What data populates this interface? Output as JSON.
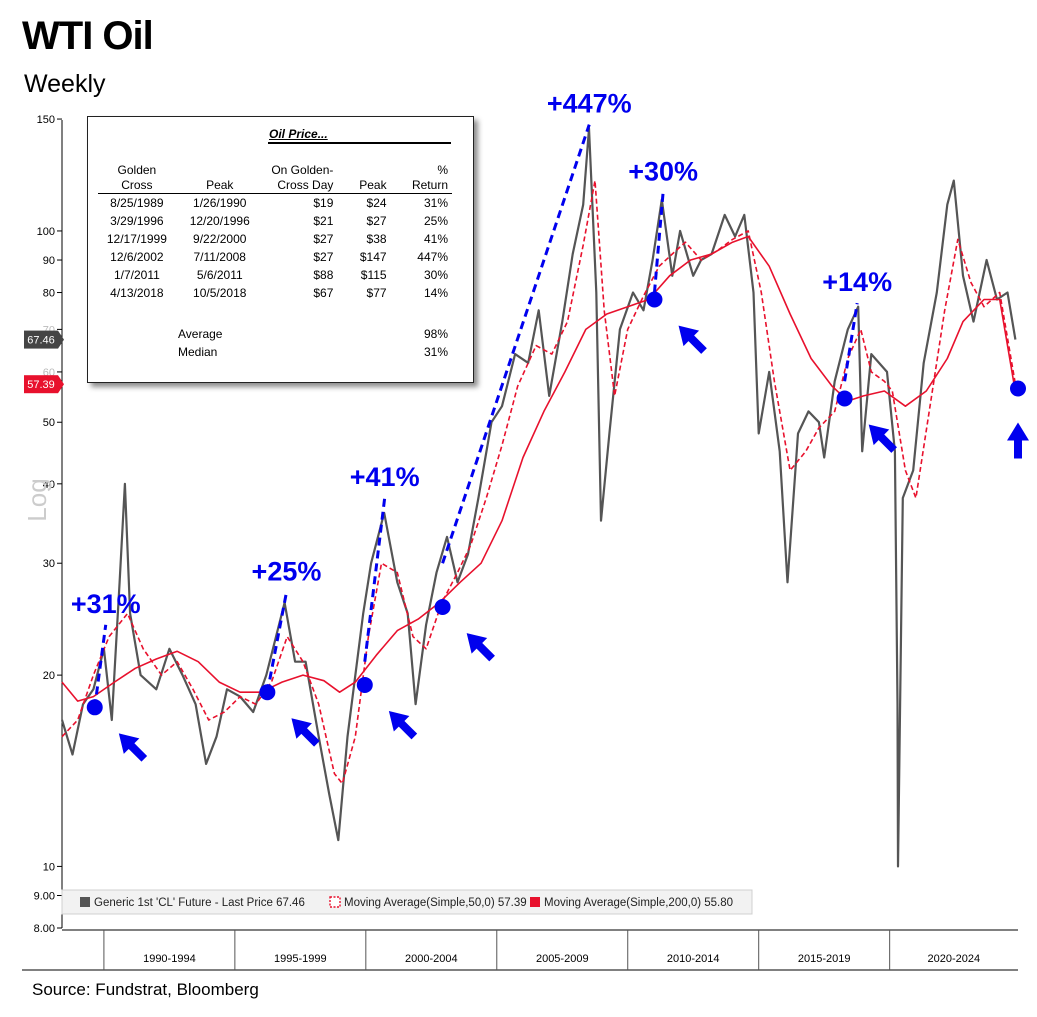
{
  "header": {
    "title": "WTI Oil",
    "subtitle": "Weekly"
  },
  "source": "Source: Fundstrat, Bloomberg",
  "table": {
    "title": "Oil Price...",
    "headers": {
      "golden_cross": [
        "Golden",
        "Cross"
      ],
      "peak": [
        "",
        "Peak"
      ],
      "on_golden": [
        "On Golden-",
        "Cross Day"
      ],
      "peak_price": [
        "",
        "Peak"
      ],
      "return": [
        "%",
        "Return"
      ]
    },
    "rows": [
      [
        "8/25/1989",
        "1/26/1990",
        "$19",
        "$24",
        "31%"
      ],
      [
        "3/29/1996",
        "12/20/1996",
        "$21",
        "$27",
        "25%"
      ],
      [
        "12/17/1999",
        "9/22/2000",
        "$27",
        "$38",
        "41%"
      ],
      [
        "12/6/2002",
        "7/11/2008",
        "$27",
        "$147",
        "447%"
      ],
      [
        "1/7/2011",
        "5/6/2011",
        "$88",
        "$115",
        "30%"
      ],
      [
        "4/13/2018",
        "10/5/2018",
        "$67",
        "$77",
        "14%"
      ]
    ],
    "average_label": "Average",
    "average_value": "98%",
    "median_label": "Median",
    "median_value": "31%"
  },
  "chart_data": {
    "type": "line",
    "scale": "log",
    "ylabel": "Log",
    "ylim": [
      8,
      155
    ],
    "y_ticks": [
      8,
      9,
      10,
      20,
      30,
      40,
      50,
      60,
      70,
      80,
      90,
      100,
      150
    ],
    "y_tick_labels": [
      "8.00",
      "9.00",
      "10",
      "20",
      "30",
      "40",
      "50",
      "60",
      "70",
      "80",
      "90",
      "100",
      "150"
    ],
    "x_period_labels": [
      "1990-1994",
      "1995-1999",
      "2000-2004",
      "2005-2009",
      "2010-2014",
      "2015-2019",
      "2020-2024"
    ],
    "x_range": [
      1988.4,
      2024.9
    ],
    "current_price": {
      "value": 67.46,
      "label": "67.46",
      "color": "#444444"
    },
    "current_ma50": {
      "value": 57.39,
      "label": "57.39",
      "color": "#e8112d"
    },
    "series": [
      {
        "name": "Generic 1st 'CL' Future - Last Price 67.46",
        "color": "#555555",
        "points": [
          [
            1988.4,
            17
          ],
          [
            1988.8,
            15
          ],
          [
            1989.2,
            18
          ],
          [
            1989.6,
            19
          ],
          [
            1990.0,
            22
          ],
          [
            1990.3,
            17
          ],
          [
            1990.6,
            28
          ],
          [
            1990.8,
            40
          ],
          [
            1991.0,
            25
          ],
          [
            1991.4,
            20
          ],
          [
            1992.0,
            19
          ],
          [
            1992.5,
            22
          ],
          [
            1993.0,
            20
          ],
          [
            1993.5,
            18
          ],
          [
            1993.9,
            14.5
          ],
          [
            1994.3,
            16
          ],
          [
            1994.7,
            19
          ],
          [
            1995.2,
            18.5
          ],
          [
            1995.7,
            17.5
          ],
          [
            1996.2,
            20
          ],
          [
            1996.9,
            26
          ],
          [
            1997.3,
            21
          ],
          [
            1997.7,
            21
          ],
          [
            1998.2,
            16
          ],
          [
            1998.6,
            13
          ],
          [
            1998.95,
            11
          ],
          [
            1999.3,
            16
          ],
          [
            1999.9,
            25
          ],
          [
            2000.2,
            30
          ],
          [
            2000.7,
            36
          ],
          [
            2001.2,
            28
          ],
          [
            2001.6,
            25
          ],
          [
            2001.9,
            18
          ],
          [
            2002.3,
            24
          ],
          [
            2002.7,
            29
          ],
          [
            2003.1,
            33
          ],
          [
            2003.5,
            28
          ],
          [
            2003.9,
            31
          ],
          [
            2004.3,
            38
          ],
          [
            2004.8,
            50
          ],
          [
            2005.2,
            53
          ],
          [
            2005.7,
            64
          ],
          [
            2006.2,
            62
          ],
          [
            2006.6,
            75
          ],
          [
            2007.0,
            55
          ],
          [
            2007.5,
            72
          ],
          [
            2007.9,
            92
          ],
          [
            2008.3,
            110
          ],
          [
            2008.52,
            145
          ],
          [
            2008.8,
            80
          ],
          [
            2008.98,
            35
          ],
          [
            2009.3,
            48
          ],
          [
            2009.7,
            70
          ],
          [
            2010.2,
            80
          ],
          [
            2010.6,
            75
          ],
          [
            2010.95,
            90
          ],
          [
            2011.3,
            112
          ],
          [
            2011.7,
            85
          ],
          [
            2012.0,
            100
          ],
          [
            2012.5,
            85
          ],
          [
            2012.8,
            90
          ],
          [
            2013.2,
            92
          ],
          [
            2013.7,
            106
          ],
          [
            2014.1,
            98
          ],
          [
            2014.45,
            106
          ],
          [
            2014.8,
            80
          ],
          [
            2015.0,
            48
          ],
          [
            2015.4,
            60
          ],
          [
            2015.8,
            45
          ],
          [
            2016.1,
            28
          ],
          [
            2016.5,
            48
          ],
          [
            2016.9,
            52
          ],
          [
            2017.3,
            50
          ],
          [
            2017.5,
            44
          ],
          [
            2017.9,
            58
          ],
          [
            2018.4,
            70
          ],
          [
            2018.8,
            76
          ],
          [
            2018.95,
            45
          ],
          [
            2019.3,
            64
          ],
          [
            2019.9,
            60
          ],
          [
            2020.2,
            45
          ],
          [
            2020.3,
            18
          ],
          [
            2020.32,
            10
          ],
          [
            2020.5,
            38
          ],
          [
            2020.9,
            42
          ],
          [
            2021.3,
            62
          ],
          [
            2021.8,
            80
          ],
          [
            2022.2,
            110
          ],
          [
            2022.45,
            120
          ],
          [
            2022.8,
            85
          ],
          [
            2023.2,
            72
          ],
          [
            2023.7,
            90
          ],
          [
            2024.1,
            78
          ],
          [
            2024.5,
            80
          ],
          [
            2024.8,
            67.46
          ]
        ]
      },
      {
        "name": "Moving Average(Simple,50,0) 57.39",
        "color": "#e8112d",
        "dashed": true,
        "points": [
          [
            1988.4,
            16
          ],
          [
            1989.0,
            17
          ],
          [
            1989.6,
            20
          ],
          [
            1990.2,
            23
          ],
          [
            1990.9,
            25
          ],
          [
            1991.5,
            22
          ],
          [
            1992.2,
            20
          ],
          [
            1992.8,
            21
          ],
          [
            1993.4,
            19
          ],
          [
            1994.0,
            17
          ],
          [
            1994.6,
            17.5
          ],
          [
            1995.2,
            18.5
          ],
          [
            1995.8,
            18
          ],
          [
            1996.4,
            19.5
          ],
          [
            1997.0,
            23
          ],
          [
            1997.6,
            21
          ],
          [
            1998.2,
            18
          ],
          [
            1998.8,
            14
          ],
          [
            1999.1,
            13.5
          ],
          [
            1999.6,
            16
          ],
          [
            2000.1,
            23
          ],
          [
            2000.6,
            30
          ],
          [
            2001.2,
            29
          ],
          [
            2001.8,
            23
          ],
          [
            2002.3,
            22
          ],
          [
            2002.9,
            26
          ],
          [
            2003.5,
            29
          ],
          [
            2004.0,
            32
          ],
          [
            2004.6,
            38
          ],
          [
            2005.2,
            46
          ],
          [
            2005.8,
            57
          ],
          [
            2006.5,
            66
          ],
          [
            2007.1,
            64
          ],
          [
            2007.7,
            72
          ],
          [
            2008.3,
            95
          ],
          [
            2008.75,
            120
          ],
          [
            2009.1,
            75
          ],
          [
            2009.5,
            55
          ],
          [
            2010.0,
            70
          ],
          [
            2010.6,
            79
          ],
          [
            2011.2,
            88
          ],
          [
            2011.7,
            92
          ],
          [
            2012.2,
            96
          ],
          [
            2012.8,
            90
          ],
          [
            2013.4,
            93
          ],
          [
            2014.0,
            97
          ],
          [
            2014.6,
            100
          ],
          [
            2015.1,
            80
          ],
          [
            2015.6,
            58
          ],
          [
            2016.2,
            42
          ],
          [
            2016.8,
            45
          ],
          [
            2017.3,
            49
          ],
          [
            2017.9,
            52
          ],
          [
            2018.4,
            63
          ],
          [
            2018.9,
            70
          ],
          [
            2019.3,
            60
          ],
          [
            2019.8,
            58
          ],
          [
            2020.1,
            56
          ],
          [
            2020.6,
            42
          ],
          [
            2021.0,
            38
          ],
          [
            2021.6,
            55
          ],
          [
            2022.1,
            75
          ],
          [
            2022.6,
            97
          ],
          [
            2023.1,
            83
          ],
          [
            2023.6,
            76
          ],
          [
            2024.2,
            80
          ],
          [
            2024.8,
            57.39
          ]
        ]
      },
      {
        "name": "Moving Average(Simple,200,0) 55.80",
        "color": "#e8112d",
        "dashed": false,
        "points": [
          [
            1988.4,
            19.5
          ],
          [
            1989.0,
            18.2
          ],
          [
            1989.6,
            18.5
          ],
          [
            1990.4,
            19.5
          ],
          [
            1991.2,
            20.5
          ],
          [
            1992.0,
            21.2
          ],
          [
            1992.8,
            21.8
          ],
          [
            1993.6,
            21
          ],
          [
            1994.4,
            19.5
          ],
          [
            1995.2,
            18.8
          ],
          [
            1996.0,
            18.8
          ],
          [
            1996.8,
            19.5
          ],
          [
            1997.6,
            20
          ],
          [
            1998.4,
            19.6
          ],
          [
            1999.0,
            18.8
          ],
          [
            1999.6,
            19.5
          ],
          [
            2000.4,
            21.5
          ],
          [
            2001.2,
            23.5
          ],
          [
            2002.0,
            24.5
          ],
          [
            2002.8,
            26
          ],
          [
            2003.6,
            28
          ],
          [
            2004.4,
            30
          ],
          [
            2005.2,
            35
          ],
          [
            2006.0,
            44
          ],
          [
            2006.8,
            52
          ],
          [
            2007.6,
            60
          ],
          [
            2008.4,
            70
          ],
          [
            2009.2,
            74
          ],
          [
            2010.0,
            76
          ],
          [
            2010.8,
            78
          ],
          [
            2011.6,
            85
          ],
          [
            2012.4,
            90
          ],
          [
            2013.2,
            92
          ],
          [
            2014.0,
            96
          ],
          [
            2014.6,
            98
          ],
          [
            2015.4,
            88
          ],
          [
            2016.2,
            74
          ],
          [
            2017.0,
            63
          ],
          [
            2017.8,
            57
          ],
          [
            2018.4,
            54
          ],
          [
            2019.0,
            55
          ],
          [
            2019.8,
            56
          ],
          [
            2020.6,
            53
          ],
          [
            2021.4,
            56
          ],
          [
            2022.2,
            63
          ],
          [
            2022.8,
            72
          ],
          [
            2023.6,
            78
          ],
          [
            2024.2,
            78
          ],
          [
            2024.8,
            55.8
          ]
        ]
      }
    ],
    "golden_cross_points": [
      {
        "date": 1989.65,
        "price": 17.8,
        "arrow": "down-right"
      },
      {
        "date": 1996.24,
        "price": 18.8,
        "arrow": "down-right"
      },
      {
        "date": 1999.96,
        "price": 19.3,
        "arrow": "down-right"
      },
      {
        "date": 2002.93,
        "price": 25.6,
        "arrow": "down-right"
      },
      {
        "date": 2011.02,
        "price": 78,
        "arrow": "down-right"
      },
      {
        "date": 2018.28,
        "price": 54.5,
        "arrow": "down-right"
      },
      {
        "date": 2024.9,
        "price": 56.5,
        "arrow": "up"
      }
    ],
    "rally_annotations": [
      {
        "label": "+31%",
        "start": [
          1989.65,
          17.8
        ],
        "end": [
          1990.07,
          24
        ],
        "color": "#0000ee"
      },
      {
        "label": "+25%",
        "start": [
          1996.24,
          18.8
        ],
        "end": [
          1996.97,
          27
        ],
        "color": "#0000ee"
      },
      {
        "label": "+41%",
        "start": [
          1999.96,
          21
        ],
        "end": [
          2000.72,
          38
        ],
        "color": "#0000ee"
      },
      {
        "label": "+447%",
        "start": [
          2002.93,
          30
        ],
        "end": [
          2008.53,
          147
        ],
        "color": "#0000ee"
      },
      {
        "label": "+30%",
        "start": [
          2011.02,
          80
        ],
        "end": [
          2011.35,
          115
        ],
        "color": "#0000ee"
      },
      {
        "label": "+14%",
        "start": [
          2018.28,
          58
        ],
        "end": [
          2018.76,
          77
        ],
        "color": "#0000ee"
      }
    ],
    "legend": [
      {
        "name": "Generic 1st 'CL' Future - Last Price 67.46",
        "color": "#555555",
        "marker": "solid"
      },
      {
        "name": "Moving Average(Simple,50,0) 57.39",
        "color": "#e8112d",
        "marker": "dashed"
      },
      {
        "name": "Moving Average(Simple,200,0) 55.80",
        "color": "#e8112d",
        "marker": "solid"
      }
    ],
    "grid": false,
    "legend_position": "bottom-left"
  }
}
